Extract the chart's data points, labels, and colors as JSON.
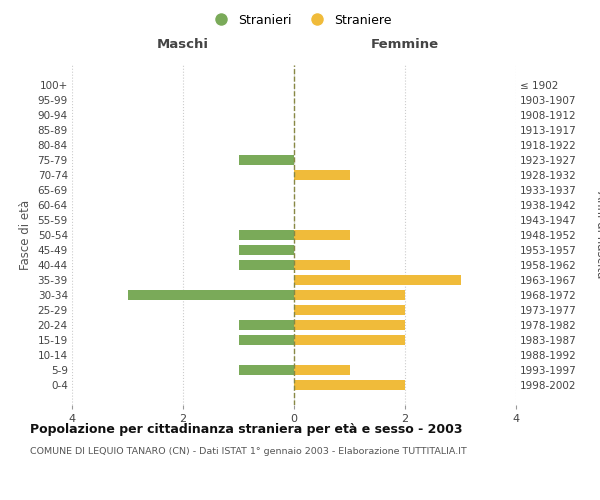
{
  "age_groups": [
    "100+",
    "95-99",
    "90-94",
    "85-89",
    "80-84",
    "75-79",
    "70-74",
    "65-69",
    "60-64",
    "55-59",
    "50-54",
    "45-49",
    "40-44",
    "35-39",
    "30-34",
    "25-29",
    "20-24",
    "15-19",
    "10-14",
    "5-9",
    "0-4"
  ],
  "birth_years": [
    "≤ 1902",
    "1903-1907",
    "1908-1912",
    "1913-1917",
    "1918-1922",
    "1923-1927",
    "1928-1932",
    "1933-1937",
    "1938-1942",
    "1943-1947",
    "1948-1952",
    "1953-1957",
    "1958-1962",
    "1963-1967",
    "1968-1972",
    "1973-1977",
    "1978-1982",
    "1983-1987",
    "1988-1992",
    "1993-1997",
    "1998-2002"
  ],
  "maschi": [
    0,
    0,
    0,
    0,
    0,
    1,
    0,
    0,
    0,
    0,
    1,
    1,
    1,
    0,
    3,
    0,
    1,
    1,
    0,
    1,
    0
  ],
  "femmine": [
    0,
    0,
    0,
    0,
    0,
    0,
    1,
    0,
    0,
    0,
    1,
    0,
    1,
    3,
    2,
    2,
    2,
    2,
    0,
    1,
    2
  ],
  "color_maschi": "#7aaa59",
  "color_femmine": "#f0bb3a",
  "color_dashed": "#888844",
  "title": "Popolazione per cittadinanza straniera per età e sesso - 2003",
  "subtitle": "COMUNE DI LEQUIO TANARO (CN) - Dati ISTAT 1° gennaio 2003 - Elaborazione TUTTITALIA.IT",
  "ylabel_left": "Fasce di età",
  "ylabel_right": "Anni di nascita",
  "xlabel_left": "Maschi",
  "xlabel_right": "Femmine",
  "legend_maschi": "Stranieri",
  "legend_femmine": "Straniere",
  "xlim": 4,
  "background_color": "#ffffff",
  "grid_color": "#cccccc"
}
